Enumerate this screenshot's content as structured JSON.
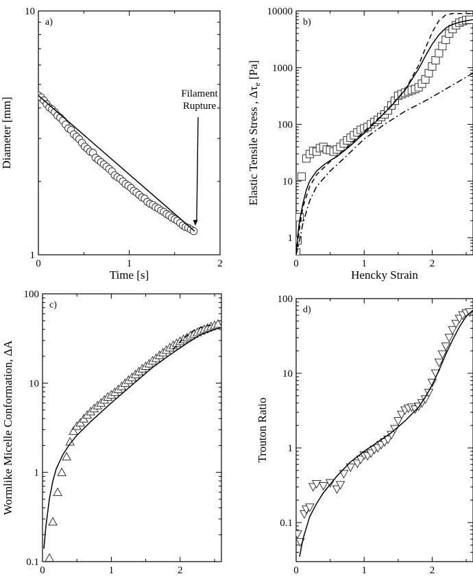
{
  "chart_data": [
    {
      "panel": "a)",
      "type": "scatter",
      "xlabel": "Time [s]",
      "ylabel": "Diameter [mm]",
      "xlim": [
        0,
        2
      ],
      "ylim": [
        1,
        10
      ],
      "yscale": "log",
      "xticks": [
        0,
        1,
        2
      ],
      "xtick_labels": [
        "0",
        "1",
        "2"
      ],
      "yticks": [
        1,
        10
      ],
      "ytick_labels": [
        "1",
        "10"
      ],
      "annotation": [
        "Filament",
        "Rupture"
      ],
      "annotation_target": [
        1.72,
        1.25
      ],
      "series": [
        {
          "marker": "circle",
          "x": [
            0.0,
            0.03,
            0.06,
            0.09,
            0.12,
            0.15,
            0.18,
            0.21,
            0.24,
            0.27,
            0.3,
            0.33,
            0.36,
            0.39,
            0.42,
            0.45,
            0.48,
            0.51,
            0.54,
            0.57,
            0.6,
            0.63,
            0.66,
            0.69,
            0.72,
            0.75,
            0.78,
            0.81,
            0.84,
            0.87,
            0.9,
            0.93,
            0.96,
            0.99,
            1.02,
            1.05,
            1.08,
            1.11,
            1.14,
            1.17,
            1.2,
            1.23,
            1.26,
            1.29,
            1.32,
            1.35,
            1.38,
            1.41,
            1.44,
            1.47,
            1.5,
            1.53,
            1.56,
            1.59,
            1.62,
            1.65,
            1.68,
            1.71
          ],
          "y": [
            4.5,
            4.42,
            4.3,
            4.15,
            4.02,
            3.95,
            3.85,
            3.72,
            3.65,
            3.55,
            3.42,
            3.3,
            3.25,
            3.12,
            3.05,
            2.98,
            2.88,
            2.78,
            2.72,
            2.65,
            2.62,
            2.5,
            2.45,
            2.4,
            2.35,
            2.3,
            2.25,
            2.2,
            2.12,
            2.08,
            2.05,
            2.0,
            1.95,
            1.92,
            1.88,
            1.83,
            1.8,
            1.76,
            1.72,
            1.7,
            1.65,
            1.62,
            1.6,
            1.57,
            1.55,
            1.52,
            1.5,
            1.47,
            1.45,
            1.42,
            1.4,
            1.38,
            1.35,
            1.32,
            1.3,
            1.29,
            1.27,
            1.25
          ]
        },
        {
          "type": "line",
          "style": "solid",
          "x": [
            0.0,
            1.72
          ],
          "y": [
            4.5,
            1.25
          ]
        }
      ]
    },
    {
      "panel": "b)",
      "type": "scatter",
      "xlabel": "Hencky Strain",
      "ylabel": "Elastic Tensile Stress , Δτ",
      "ylabel_sub": "e",
      "ylabel_unit": "[Pa]",
      "xlim": [
        0,
        2.6
      ],
      "ylim": [
        0.5,
        10000
      ],
      "yscale": "log",
      "xticks": [
        0,
        1,
        2
      ],
      "xtick_labels": [
        "0",
        "1",
        "2"
      ],
      "yticks": [
        1,
        10,
        100,
        1000,
        10000
      ],
      "ytick_labels": [
        "1",
        "10",
        "100",
        "1000",
        "10000"
      ],
      "series": [
        {
          "marker": "square",
          "x": [
            0.0,
            0.02,
            0.05,
            0.08,
            0.15,
            0.2,
            0.25,
            0.3,
            0.35,
            0.4,
            0.45,
            0.5,
            0.55,
            0.6,
            0.65,
            0.7,
            0.75,
            0.8,
            0.85,
            0.9,
            0.95,
            1.0,
            1.05,
            1.1,
            1.15,
            1.2,
            1.25,
            1.3,
            1.35,
            1.4,
            1.45,
            1.5,
            1.55,
            1.6,
            1.65,
            1.7,
            1.75,
            1.8,
            1.85,
            1.9,
            1.95,
            2.0,
            2.05,
            2.1,
            2.15,
            2.2,
            2.25,
            2.3,
            2.35,
            2.4,
            2.45,
            2.5,
            2.55
          ],
          "y": [
            0.55,
            0.9,
            2.3,
            12,
            25,
            30,
            34,
            33,
            38,
            40,
            36,
            35,
            33,
            36,
            40,
            46,
            52,
            58,
            64,
            72,
            80,
            85,
            90,
            100,
            110,
            120,
            135,
            150,
            175,
            215,
            260,
            320,
            340,
            360,
            380,
            400,
            420,
            450,
            520,
            620,
            800,
            1050,
            1350,
            1800,
            2400,
            3100,
            4000,
            4800,
            5600,
            6200,
            6600,
            6900,
            7000
          ]
        },
        {
          "type": "line",
          "style": "solid",
          "x": [
            0.0,
            0.02,
            0.05,
            0.1,
            0.15,
            0.2,
            0.3,
            0.4,
            0.5,
            0.6,
            0.8,
            1.0,
            1.2,
            1.4,
            1.6,
            1.8,
            1.9,
            2.0,
            2.1,
            2.2,
            2.3,
            2.4,
            2.5,
            2.6
          ],
          "y": [
            0.5,
            1.0,
            2.0,
            4.0,
            7.0,
            10,
            15,
            19,
            23,
            27,
            42,
            70,
            120,
            210,
            400,
            950,
            1600,
            2600,
            3800,
            5000,
            5800,
            6300,
            6700,
            7000
          ]
        },
        {
          "type": "line",
          "style": "dashed",
          "x": [
            0.0,
            0.05,
            0.1,
            0.2,
            0.3,
            0.5,
            0.7,
            1.0,
            1.3,
            1.6,
            1.8,
            1.9,
            2.0,
            2.1,
            2.2,
            2.3,
            2.4,
            2.5,
            2.6
          ],
          "y": [
            0.5,
            1.5,
            3.5,
            8,
            13,
            22,
            35,
            75,
            160,
            400,
            1100,
            2200,
            4200,
            6800,
            8500,
            9000,
            9000,
            9000,
            9000
          ]
        },
        {
          "type": "line",
          "style": "dashdot",
          "x": [
            0.0,
            0.05,
            0.1,
            0.2,
            0.3,
            0.5,
            0.7,
            1.0,
            1.3,
            1.6,
            1.9,
            2.2,
            2.4,
            2.6
          ],
          "y": [
            0.5,
            0.9,
            1.8,
            4.5,
            8,
            15,
            25,
            55,
            100,
            170,
            260,
            420,
            580,
            800
          ]
        }
      ]
    },
    {
      "panel": "c)",
      "type": "scatter",
      "xlabel": "Hencky Strain",
      "ylabel": "Wormlike Micelle Conformation, ΔA",
      "xlim": [
        0,
        2.6
      ],
      "ylim": [
        0.1,
        100
      ],
      "yscale": "log",
      "xticks": [
        0,
        1,
        2
      ],
      "xtick_labels": [
        "0",
        "1",
        "2"
      ],
      "yticks": [
        0.1,
        1,
        10,
        100
      ],
      "ytick_labels": [
        "0.1",
        "1",
        "10",
        "100"
      ],
      "series": [
        {
          "marker": "triangle-up",
          "x": [
            0.1,
            0.15,
            0.22,
            0.28,
            0.35,
            0.4,
            0.45,
            0.5,
            0.55,
            0.6,
            0.65,
            0.7,
            0.75,
            0.8,
            0.85,
            0.9,
            0.95,
            1.0,
            1.05,
            1.1,
            1.15,
            1.2,
            1.25,
            1.3,
            1.35,
            1.4,
            1.45,
            1.5,
            1.55,
            1.6,
            1.65,
            1.7,
            1.75,
            1.8,
            1.85,
            1.9,
            1.95,
            2.0,
            2.05,
            2.1,
            2.15,
            2.2,
            2.25,
            2.3,
            2.35,
            2.4,
            2.45,
            2.5,
            2.55
          ],
          "y": [
            0.11,
            0.28,
            0.6,
            1.0,
            1.5,
            2.2,
            2.9,
            3.3,
            3.6,
            4.0,
            4.4,
            4.8,
            5.2,
            5.6,
            6.0,
            6.5,
            7.0,
            7.4,
            7.9,
            8.5,
            9.2,
            10,
            10.8,
            11.6,
            12.5,
            13.5,
            14.5,
            15.5,
            16.5,
            17.8,
            19,
            20.5,
            22,
            23.5,
            25,
            26.5,
            28,
            29.5,
            31,
            32.5,
            34,
            35.5,
            37,
            38.5,
            40,
            41.5,
            43,
            44.5,
            46
          ]
        },
        {
          "type": "line",
          "style": "solid",
          "x": [
            0.02,
            0.05,
            0.1,
            0.15,
            0.2,
            0.3,
            0.4,
            0.5,
            0.7,
            1.0,
            1.3,
            1.6,
            1.9,
            2.1,
            2.3,
            2.5,
            2.6
          ],
          "y": [
            0.14,
            0.25,
            0.5,
            0.8,
            1.1,
            1.6,
            2.1,
            2.6,
            3.7,
            6.0,
            9.5,
            15,
            22,
            28,
            35,
            40,
            42
          ]
        },
        {
          "type": "line",
          "style": "dashed",
          "x": [
            1.9,
            2.0,
            2.1,
            2.2,
            2.3,
            2.4,
            2.5
          ],
          "y": [
            24,
            29,
            34,
            39,
            42,
            44,
            45
          ]
        }
      ]
    },
    {
      "panel": "d)",
      "type": "scatter",
      "xlabel": "Hencky Strain",
      "ylabel": "Trouton Ratio",
      "xlim": [
        0,
        2.6
      ],
      "ylim": [
        0.03,
        100
      ],
      "yscale": "log",
      "xticks": [
        0,
        1,
        2
      ],
      "xtick_labels": [
        "0",
        "1",
        "2"
      ],
      "yticks": [
        0.1,
        1,
        10,
        100
      ],
      "ytick_labels": [
        "0.1",
        "1",
        "10",
        "100"
      ],
      "series": [
        {
          "marker": "triangle-down",
          "x": [
            0.02,
            0.06,
            0.12,
            0.15,
            0.2,
            0.25,
            0.3,
            0.4,
            0.5,
            0.6,
            0.65,
            0.7,
            0.8,
            0.9,
            0.95,
            1.0,
            1.05,
            1.1,
            1.15,
            1.2,
            1.25,
            1.3,
            1.35,
            1.4,
            1.45,
            1.5,
            1.55,
            1.6,
            1.65,
            1.7,
            1.75,
            1.8,
            1.85,
            1.9,
            1.95,
            2.0,
            2.05,
            2.1,
            2.15,
            2.2,
            2.25,
            2.3,
            2.35,
            2.4,
            2.45,
            2.5,
            2.55
          ],
          "y": [
            0.07,
            0.055,
            0.13,
            0.15,
            0.16,
            0.3,
            0.33,
            0.31,
            0.34,
            0.28,
            0.32,
            0.45,
            0.55,
            0.62,
            0.7,
            0.8,
            0.78,
            0.85,
            0.95,
            1.0,
            1.1,
            1.2,
            1.3,
            1.5,
            1.8,
            2.3,
            2.8,
            3.2,
            3.4,
            3.5,
            3.3,
            3.6,
            4.0,
            4.5,
            5.5,
            7.5,
            10,
            14,
            18,
            23,
            30,
            38,
            46,
            54,
            60,
            64,
            66
          ]
        },
        {
          "type": "line",
          "style": "solid",
          "x": [
            0.05,
            0.1,
            0.2,
            0.3,
            0.4,
            0.6,
            0.8,
            1.0,
            1.2,
            1.4,
            1.6,
            1.8,
            1.9,
            2.0,
            2.1,
            2.2,
            2.3,
            2.4,
            2.5,
            2.6
          ],
          "y": [
            0.035,
            0.06,
            0.12,
            0.18,
            0.25,
            0.42,
            0.65,
            0.9,
            1.2,
            1.6,
            2.3,
            3.5,
            4.8,
            7.0,
            11,
            18,
            28,
            42,
            58,
            70
          ]
        }
      ]
    }
  ]
}
